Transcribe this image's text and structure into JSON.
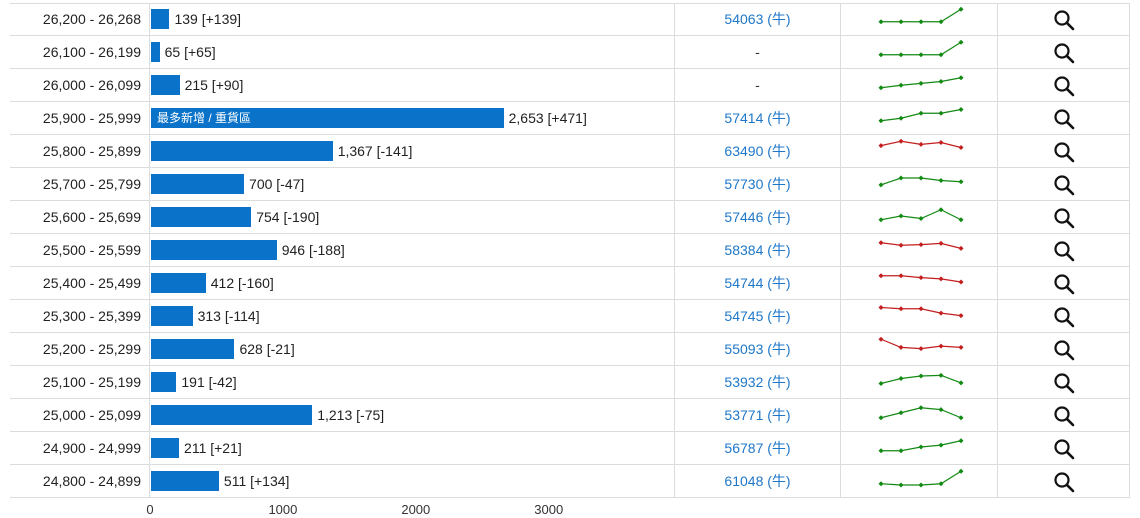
{
  "table": {
    "rows": [
      {
        "range": "26,200 - 26,268",
        "value": 139,
        "value_text": "139 [+139]",
        "code": "54063 (牛)",
        "trend": "up",
        "spark": [
          1,
          1,
          1,
          1,
          3
        ]
      },
      {
        "range": "26,100 - 26,199",
        "value": 65,
        "value_text": "65 [+65]",
        "code": "-",
        "trend": "up",
        "spark": [
          1,
          1,
          1,
          1,
          3
        ]
      },
      {
        "range": "26,000 - 26,099",
        "value": 215,
        "value_text": "215 [+90]",
        "code": "-",
        "trend": "up",
        "spark": [
          1,
          1.4,
          1.7,
          2,
          2.6
        ]
      },
      {
        "range": "25,900 - 25,999",
        "value": 2653,
        "value_text": "2,653 [+471]",
        "code": "57414 (牛)",
        "trend": "up",
        "bar_label": "最多新增 / 重貨區",
        "spark": [
          1,
          1.4,
          2.2,
          2.2,
          2.8
        ]
      },
      {
        "range": "25,800 - 25,899",
        "value": 1367,
        "value_text": "1,367 [-141]",
        "code": "63490 (牛)",
        "trend": "down",
        "spark": [
          2.3,
          3,
          2.5,
          2.8,
          2
        ]
      },
      {
        "range": "25,700 - 25,799",
        "value": 700,
        "value_text": "700 [-47]",
        "code": "57730 (牛)",
        "trend": "up",
        "spark": [
          1.3,
          2.4,
          2.4,
          2,
          1.8
        ]
      },
      {
        "range": "25,600 - 25,699",
        "value": 754,
        "value_text": "754 [-190]",
        "code": "57446 (牛)",
        "trend": "up",
        "spark": [
          1,
          1.6,
          1.2,
          2.6,
          1
        ]
      },
      {
        "range": "25,500 - 25,599",
        "value": 946,
        "value_text": "946 [-188]",
        "code": "58384 (牛)",
        "trend": "down",
        "spark": [
          2.6,
          2.2,
          2.3,
          2.5,
          1.7
        ]
      },
      {
        "range": "25,400 - 25,499",
        "value": 412,
        "value_text": "412 [-160]",
        "code": "54744 (牛)",
        "trend": "down",
        "spark": [
          2.6,
          2.6,
          2.3,
          2.1,
          1.6
        ]
      },
      {
        "range": "25,300 - 25,399",
        "value": 313,
        "value_text": "313 [-114]",
        "code": "54745 (牛)",
        "trend": "down",
        "spark": [
          2.8,
          2.6,
          2.6,
          1.9,
          1.5
        ]
      },
      {
        "range": "25,200 - 25,299",
        "value": 628,
        "value_text": "628 [-21]",
        "code": "55093 (牛)",
        "trend": "down",
        "spark": [
          3,
          1.7,
          1.5,
          1.9,
          1.7
        ]
      },
      {
        "range": "25,100 - 25,199",
        "value": 191,
        "value_text": "191 [-42]",
        "code": "53932 (牛)",
        "trend": "up",
        "spark": [
          1.2,
          2,
          2.4,
          2.5,
          1.3
        ]
      },
      {
        "range": "25,000 - 25,099",
        "value": 1213,
        "value_text": "1,213 [-75]",
        "code": "53771 (牛)",
        "trend": "up",
        "spark": [
          1,
          1.8,
          2.6,
          2.3,
          1
        ]
      },
      {
        "range": "24,900 - 24,999",
        "value": 211,
        "value_text": "211 [+21]",
        "code": "56787 (牛)",
        "trend": "up",
        "spark": [
          1,
          1,
          1.6,
          1.9,
          2.6
        ]
      },
      {
        "range": "24,800 - 24,899",
        "value": 511,
        "value_text": "511 [+134]",
        "code": "61048 (牛)",
        "trend": "up",
        "spark": [
          1,
          0.8,
          0.8,
          1,
          3
        ]
      }
    ]
  },
  "chart_data": {
    "type": "bar",
    "orientation": "horizontal",
    "categories": [
      "26,200 - 26,268",
      "26,100 - 26,199",
      "26,000 - 26,099",
      "25,900 - 25,999",
      "25,800 - 25,899",
      "25,700 - 25,799",
      "25,600 - 25,699",
      "25,500 - 25,599",
      "25,400 - 25,499",
      "25,300 - 25,399",
      "25,200 - 25,299",
      "25,100 - 25,199",
      "25,000 - 25,099",
      "24,900 - 24,999",
      "24,800 - 24,899"
    ],
    "values": [
      139,
      65,
      215,
      2653,
      1367,
      700,
      754,
      946,
      412,
      313,
      628,
      191,
      1213,
      211,
      511
    ],
    "xlim": [
      0,
      3950
    ],
    "xticks": [
      "0",
      "1000",
      "2000",
      "3000"
    ],
    "xtick_values": [
      0,
      1000,
      2000,
      3000
    ]
  },
  "colors": {
    "bar": "#0a72c9",
    "up": "#138a13",
    "down": "#c41e1e",
    "link": "#1f77c8",
    "border": "#dcdcdc"
  }
}
